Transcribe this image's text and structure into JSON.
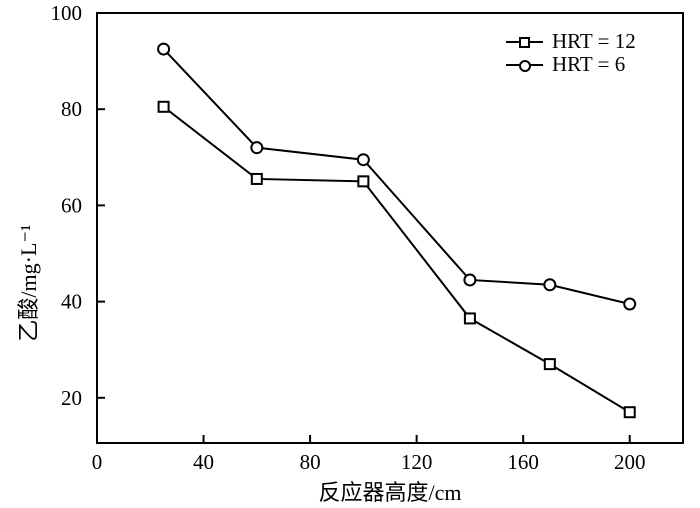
{
  "chart_data": {
    "type": "line",
    "title": "",
    "xlabel": "反应器高度/cm",
    "ylabel": "乙酸/mg·L⁻¹",
    "x": [
      25,
      60,
      100,
      140,
      170,
      200
    ],
    "series": [
      {
        "name": "HRT = 12",
        "marker": "square",
        "values": [
          80.5,
          65.5,
          65,
          36.5,
          27,
          17
        ]
      },
      {
        "name": "HRT = 6",
        "marker": "circle",
        "values": [
          92.5,
          72,
          69.5,
          44.5,
          43.5,
          39.5
        ]
      }
    ],
    "xlim": [
      0,
      220
    ],
    "ylim": [
      10.6,
      100
    ],
    "x_ticks": [
      0,
      40,
      80,
      120,
      160,
      200
    ],
    "y_ticks": [
      20,
      40,
      60,
      80,
      100
    ],
    "grid": false,
    "legend_position": "top-right",
    "line_color": "#000000",
    "marker_fill": "#ffffff",
    "background": "#ffffff"
  }
}
